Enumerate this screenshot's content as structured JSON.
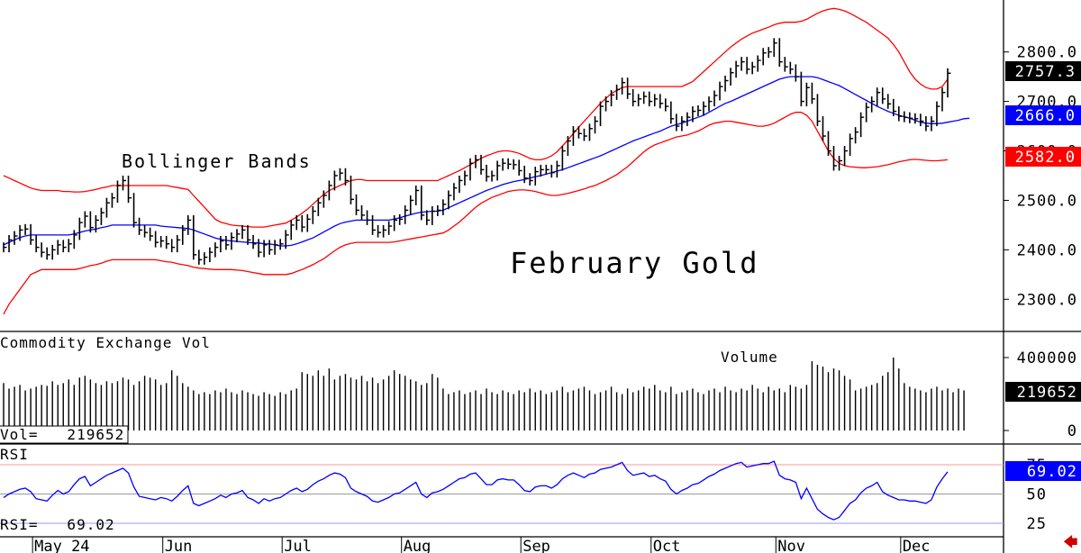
{
  "chart_data": [
    {
      "type": "ohlc",
      "title": "February Gold",
      "annotation": "Bollinger Bands",
      "y_ticks": [
        "2800.0",
        "2700.0",
        "2600.0",
        "2500.0",
        "2400.0",
        "2300.0"
      ],
      "ylim": [
        2235,
        2905
      ],
      "months": [
        "May 24",
        "Jun",
        "Jul",
        "Aug",
        "Sep",
        "Oct",
        "Nov",
        "Dec"
      ],
      "last_price": "2757.3",
      "middle_band_last": "2666.0",
      "lower_band_last": "2582.0",
      "colors": {
        "price": "#000000",
        "middle_band": "#0000ff",
        "upper_band": "#ff0000",
        "lower_band": "#ff0000",
        "price_badge": "#000000",
        "middle_badge": "#0000ff",
        "lower_badge": "#ff0000"
      },
      "close": [
        2405,
        2420,
        2428,
        2440,
        2442,
        2420,
        2405,
        2395,
        2390,
        2400,
        2410,
        2405,
        2412,
        2430,
        2455,
        2468,
        2445,
        2460,
        2475,
        2495,
        2505,
        2530,
        2540,
        2505,
        2455,
        2440,
        2435,
        2428,
        2415,
        2418,
        2412,
        2405,
        2420,
        2440,
        2460,
        2390,
        2380,
        2385,
        2395,
        2405,
        2418,
        2410,
        2425,
        2432,
        2440,
        2420,
        2412,
        2395,
        2410,
        2400,
        2410,
        2412,
        2430,
        2450,
        2460,
        2446,
        2462,
        2478,
        2495,
        2510,
        2530,
        2550,
        2555,
        2540,
        2502,
        2480,
        2470,
        2460,
        2440,
        2435,
        2440,
        2448,
        2460,
        2462,
        2480,
        2500,
        2520,
        2470,
        2460,
        2478,
        2480,
        2492,
        2510,
        2525,
        2540,
        2550,
        2575,
        2582,
        2562,
        2548,
        2550,
        2570,
        2575,
        2573,
        2572,
        2560,
        2545,
        2540,
        2558,
        2562,
        2562,
        2556,
        2570,
        2600,
        2620,
        2640,
        2635,
        2630,
        2645,
        2660,
        2690,
        2700,
        2713,
        2724,
        2738,
        2715,
        2700,
        2705,
        2710,
        2700,
        2705,
        2696,
        2690,
        2665,
        2650,
        2660,
        2668,
        2680,
        2682,
        2690,
        2700,
        2712,
        2730,
        2742,
        2758,
        2772,
        2780,
        2765,
        2770,
        2783,
        2798,
        2800,
        2818,
        2780,
        2770,
        2765,
        2750,
        2700,
        2728,
        2705,
        2660,
        2630,
        2600,
        2570,
        2580,
        2600,
        2625,
        2638,
        2668,
        2688,
        2700,
        2718,
        2705,
        2695,
        2680,
        2670,
        2668,
        2666,
        2665,
        2660,
        2650,
        2660,
        2690,
        2718,
        2757
      ],
      "upper_band": [
        2550,
        2545,
        2540,
        2535,
        2530,
        2525,
        2522,
        2520,
        2520,
        2520,
        2520,
        2518,
        2518,
        2517,
        2517,
        2518,
        2520,
        2522,
        2525,
        2527,
        2530,
        2530,
        2530,
        2530,
        2530,
        2530,
        2530,
        2530,
        2530,
        2530,
        2530,
        2528,
        2526,
        2524,
        2522,
        2510,
        2498,
        2486,
        2474,
        2462,
        2456,
        2453,
        2450,
        2449,
        2448,
        2447,
        2446,
        2446,
        2446,
        2448,
        2450,
        2452,
        2454,
        2460,
        2466,
        2474,
        2482,
        2492,
        2502,
        2512,
        2520,
        2525,
        2530,
        2535,
        2540,
        2542,
        2542,
        2540,
        2540,
        2540,
        2540,
        2540,
        2540,
        2540,
        2540,
        2540,
        2540,
        2540,
        2540,
        2540,
        2540,
        2545,
        2550,
        2555,
        2560,
        2566,
        2572,
        2578,
        2585,
        2590,
        2594,
        2598,
        2600,
        2600,
        2598,
        2595,
        2590,
        2585,
        2582,
        2582,
        2585,
        2590,
        2598,
        2610,
        2622,
        2635,
        2648,
        2660,
        2672,
        2684,
        2696,
        2706,
        2716,
        2722,
        2728,
        2730,
        2730,
        2730,
        2730,
        2730,
        2730,
        2730,
        2730,
        2730,
        2730,
        2730,
        2735,
        2740,
        2750,
        2760,
        2770,
        2780,
        2790,
        2800,
        2810,
        2818,
        2826,
        2832,
        2838,
        2842,
        2846,
        2850,
        2855,
        2858,
        2860,
        2860,
        2860,
        2862,
        2866,
        2872,
        2878,
        2883,
        2886,
        2888,
        2886,
        2883,
        2878,
        2872,
        2866,
        2860,
        2852,
        2844,
        2836,
        2828,
        2815,
        2800,
        2780,
        2760,
        2745,
        2735,
        2728,
        2725,
        2725,
        2730,
        2745
      ],
      "middle_band": [
        2410,
        2415,
        2420,
        2425,
        2428,
        2430,
        2430,
        2430,
        2430,
        2430,
        2430,
        2430,
        2430,
        2432,
        2435,
        2438,
        2440,
        2442,
        2445,
        2447,
        2450,
        2450,
        2450,
        2450,
        2450,
        2450,
        2450,
        2450,
        2450,
        2448,
        2447,
        2446,
        2445,
        2444,
        2443,
        2440,
        2436,
        2432,
        2428,
        2424,
        2421,
        2419,
        2418,
        2417,
        2416,
        2415,
        2414,
        2414,
        2412,
        2412,
        2410,
        2408,
        2408,
        2409,
        2412,
        2416,
        2420,
        2424,
        2430,
        2436,
        2442,
        2448,
        2453,
        2456,
        2458,
        2460,
        2460,
        2460,
        2460,
        2460,
        2460,
        2460,
        2462,
        2465,
        2468,
        2471,
        2474,
        2476,
        2477,
        2478,
        2478,
        2480,
        2485,
        2490,
        2495,
        2500,
        2505,
        2510,
        2515,
        2520,
        2524,
        2528,
        2532,
        2535,
        2538,
        2540,
        2542,
        2545,
        2548,
        2550,
        2553,
        2556,
        2559,
        2562,
        2566,
        2570,
        2574,
        2578,
        2582,
        2586,
        2590,
        2595,
        2600,
        2605,
        2610,
        2615,
        2620,
        2624,
        2628,
        2632,
        2636,
        2640,
        2645,
        2650,
        2653,
        2656,
        2660,
        2664,
        2668,
        2672,
        2678,
        2684,
        2690,
        2696,
        2700,
        2705,
        2710,
        2715,
        2720,
        2725,
        2730,
        2735,
        2740,
        2745,
        2748,
        2750,
        2750,
        2750,
        2750,
        2750,
        2748,
        2744,
        2740,
        2736,
        2732,
        2726,
        2720,
        2714,
        2708,
        2702,
        2696,
        2690,
        2685,
        2680,
        2676,
        2672,
        2669,
        2666,
        2662,
        2658,
        2656,
        2655,
        2655,
        2656,
        2658,
        2660,
        2662,
        2665,
        2666
      ],
      "lower_band": [
        2270,
        2290,
        2305,
        2320,
        2335,
        2350,
        2355,
        2360,
        2360,
        2360,
        2360,
        2360,
        2360,
        2360,
        2362,
        2365,
        2368,
        2370,
        2373,
        2377,
        2380,
        2380,
        2380,
        2380,
        2380,
        2380,
        2380,
        2380,
        2380,
        2378,
        2376,
        2375,
        2372,
        2370,
        2368,
        2365,
        2363,
        2362,
        2361,
        2360,
        2360,
        2360,
        2360,
        2359,
        2358,
        2356,
        2354,
        2352,
        2350,
        2350,
        2350,
        2350,
        2350,
        2352,
        2356,
        2360,
        2365,
        2370,
        2376,
        2382,
        2390,
        2398,
        2405,
        2410,
        2413,
        2415,
        2415,
        2415,
        2415,
        2415,
        2415,
        2415,
        2416,
        2418,
        2420,
        2422,
        2424,
        2426,
        2428,
        2430,
        2432,
        2434,
        2440,
        2448,
        2456,
        2466,
        2476,
        2486,
        2494,
        2500,
        2506,
        2510,
        2514,
        2518,
        2520,
        2521,
        2521,
        2520,
        2518,
        2515,
        2512,
        2510,
        2510,
        2512,
        2514,
        2517,
        2520,
        2523,
        2527,
        2530,
        2535,
        2540,
        2546,
        2552,
        2560,
        2568,
        2578,
        2588,
        2598,
        2606,
        2612,
        2616,
        2620,
        2624,
        2628,
        2630,
        2632,
        2636,
        2640,
        2646,
        2652,
        2656,
        2658,
        2660,
        2660,
        2658,
        2656,
        2654,
        2652,
        2650,
        2650,
        2652,
        2656,
        2662,
        2668,
        2674,
        2678,
        2678,
        2672,
        2660,
        2640,
        2620,
        2600,
        2585,
        2575,
        2570,
        2568,
        2567,
        2566,
        2566,
        2567,
        2568,
        2570,
        2572,
        2575,
        2578,
        2580,
        2582,
        2583,
        2582,
        2581,
        2580,
        2580,
        2581,
        2582
      ]
    },
    {
      "type": "bar",
      "title": "Commodity Exchange Vol",
      "annotation": "Volume",
      "readout": "Vol=   219652",
      "y_ticks": [
        "400000",
        "0"
      ],
      "ylim": [
        0,
        460000
      ],
      "last_value": "219652",
      "colors": {
        "bars": "#000000",
        "badge": "#000000"
      },
      "values": [
        260000,
        230000,
        240000,
        250000,
        220000,
        230000,
        240000,
        250000,
        245000,
        270000,
        250000,
        260000,
        280000,
        250000,
        290000,
        300000,
        280000,
        260000,
        250000,
        270000,
        260000,
        270000,
        290000,
        280000,
        250000,
        270000,
        300000,
        290000,
        280000,
        250000,
        260000,
        330000,
        300000,
        260000,
        240000,
        220000,
        200000,
        210000,
        200000,
        220000,
        210000,
        230000,
        210000,
        200000,
        220000,
        210000,
        200000,
        190000,
        210000,
        200000,
        190000,
        210000,
        200000,
        220000,
        230000,
        320000,
        310000,
        300000,
        330000,
        300000,
        340000,
        280000,
        300000,
        310000,
        290000,
        280000,
        300000,
        270000,
        290000,
        260000,
        280000,
        300000,
        330000,
        310000,
        300000,
        280000,
        270000,
        250000,
        260000,
        310000,
        290000,
        230000,
        200000,
        210000,
        220000,
        200000,
        210000,
        220000,
        200000,
        230000,
        210000,
        200000,
        220000,
        210000,
        200000,
        220000,
        210000,
        230000,
        210000,
        220000,
        200000,
        210000,
        220000,
        240000,
        210000,
        220000,
        230000,
        240000,
        220000,
        200000,
        210000,
        220000,
        240000,
        210000,
        200000,
        230000,
        210000,
        220000,
        240000,
        230000,
        250000,
        220000,
        210000,
        240000,
        200000,
        210000,
        220000,
        230000,
        210000,
        200000,
        220000,
        230000,
        210000,
        240000,
        220000,
        210000,
        230000,
        220000,
        250000,
        230000,
        210000,
        240000,
        220000,
        230000,
        210000,
        250000,
        240000,
        230000,
        250000,
        380000,
        360000,
        350000,
        320000,
        340000,
        330000,
        300000,
        280000,
        220000,
        230000,
        240000,
        250000,
        260000,
        300000,
        320000,
        400000,
        340000,
        260000,
        240000,
        230000,
        220000,
        210000,
        230000,
        240000,
        220000,
        230000,
        210000,
        230000,
        220000
      ]
    },
    {
      "type": "line",
      "title": "RSI",
      "readout": "RSI=   69.02",
      "y_ticks": [
        "75",
        "50",
        "25"
      ],
      "ylim": [
        20,
        82
      ],
      "reference_lines": [
        75,
        50,
        25
      ],
      "last_value": "69.02",
      "colors": {
        "line": "#0000ff",
        "reference": "#ff8888",
        "badge": "#0000ff"
      },
      "values": [
        47,
        50,
        52,
        54,
        55,
        52,
        46,
        45,
        44,
        49,
        53,
        50,
        52,
        58,
        63,
        65,
        57,
        60,
        63,
        66,
        68,
        70,
        72,
        68,
        56,
        48,
        47,
        46,
        45,
        47,
        46,
        44,
        48,
        53,
        57,
        42,
        40,
        42,
        44,
        46,
        49,
        47,
        50,
        51,
        53,
        47,
        45,
        42,
        46,
        44,
        46,
        47,
        50,
        53,
        55,
        52,
        54,
        58,
        61,
        63,
        66,
        68,
        67,
        64,
        55,
        52,
        50,
        48,
        44,
        43,
        45,
        47,
        50,
        51,
        54,
        57,
        60,
        50,
        47,
        51,
        52,
        54,
        57,
        60,
        63,
        64,
        67,
        68,
        63,
        58,
        58,
        62,
        63,
        62,
        62,
        58,
        53,
        52,
        56,
        57,
        57,
        55,
        58,
        63,
        66,
        68,
        66,
        64,
        67,
        68,
        71,
        72,
        73,
        75,
        77,
        70,
        66,
        67,
        68,
        65,
        66,
        63,
        61,
        54,
        50,
        53,
        55,
        58,
        59,
        62,
        65,
        67,
        70,
        72,
        74,
        76,
        77,
        73,
        74,
        75,
        76,
        76,
        78,
        66,
        63,
        62,
        60,
        46,
        55,
        46,
        37,
        33,
        30,
        28,
        30,
        36,
        42,
        45,
        51,
        55,
        57,
        60,
        52,
        49,
        47,
        45,
        45,
        44,
        44,
        43,
        42,
        45,
        56,
        63,
        69
      ]
    }
  ]
}
